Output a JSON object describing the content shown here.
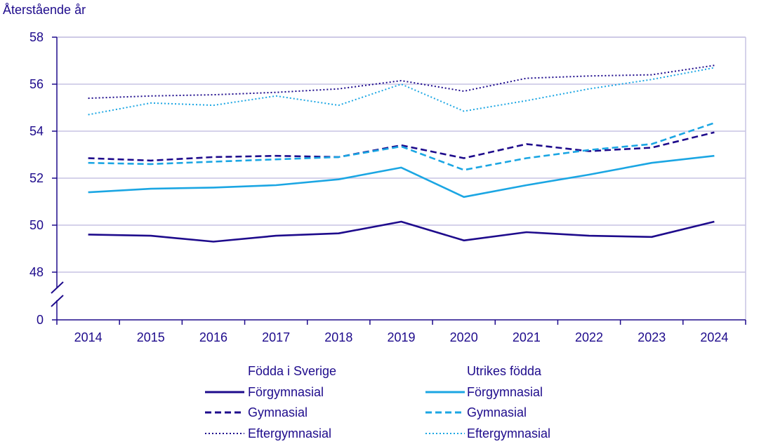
{
  "chart_data": {
    "type": "line",
    "ylabel": "Återstående år",
    "xlabel": "",
    "title": "",
    "categories": [
      "2014",
      "2015",
      "2016",
      "2017",
      "2018",
      "2019",
      "2020",
      "2021",
      "2022",
      "2023",
      "2024"
    ],
    "y_ticks": [
      "58",
      "56",
      "54",
      "52",
      "50",
      "48",
      "0"
    ],
    "ylim": [
      48,
      58
    ],
    "axis_break": true,
    "grid": true,
    "legend": {
      "placement": "bottom",
      "groups": [
        {
          "title": "Födda i Sverige",
          "entries": [
            "Förgymnasial",
            "Gymnasial",
            "Eftergymnasial"
          ]
        },
        {
          "title": "Utrikes födda",
          "entries": [
            "Förgymnasial",
            "Gymnasial",
            "Eftergymnasial"
          ]
        }
      ]
    },
    "series": [
      {
        "name": "Förgymnasial",
        "group": "Födda i Sverige",
        "color": "#1e0b8c",
        "style": "solid",
        "values": [
          49.6,
          49.55,
          49.3,
          49.55,
          49.65,
          50.15,
          49.35,
          49.7,
          49.55,
          49.5,
          50.15
        ]
      },
      {
        "name": "Gymnasial",
        "group": "Födda i Sverige",
        "color": "#1e0b8c",
        "style": "dashed",
        "values": [
          52.85,
          52.75,
          52.9,
          52.95,
          52.9,
          53.4,
          52.85,
          53.45,
          53.15,
          53.3,
          53.95
        ]
      },
      {
        "name": "Eftergymnasial",
        "group": "Födda i Sverige",
        "color": "#1e0b8c",
        "style": "dotted",
        "values": [
          55.4,
          55.5,
          55.55,
          55.65,
          55.8,
          56.15,
          55.7,
          56.25,
          56.35,
          56.4,
          56.8
        ]
      },
      {
        "name": "Förgymnasial",
        "group": "Utrikes födda",
        "color": "#1ba6e3",
        "style": "solid",
        "values": [
          51.4,
          51.55,
          51.6,
          51.7,
          51.95,
          52.45,
          51.2,
          51.7,
          52.15,
          52.65,
          52.95
        ]
      },
      {
        "name": "Gymnasial",
        "group": "Utrikes födda",
        "color": "#1ba6e3",
        "style": "dashed",
        "values": [
          52.65,
          52.6,
          52.7,
          52.8,
          52.9,
          53.35,
          52.35,
          52.85,
          53.2,
          53.45,
          54.35
        ]
      },
      {
        "name": "Eftergymnasial",
        "group": "Utrikes födda",
        "color": "#1ba6e3",
        "style": "dotted",
        "values": [
          54.7,
          55.2,
          55.1,
          55.5,
          55.1,
          56.0,
          54.85,
          55.3,
          55.8,
          56.2,
          56.7
        ]
      }
    ]
  }
}
